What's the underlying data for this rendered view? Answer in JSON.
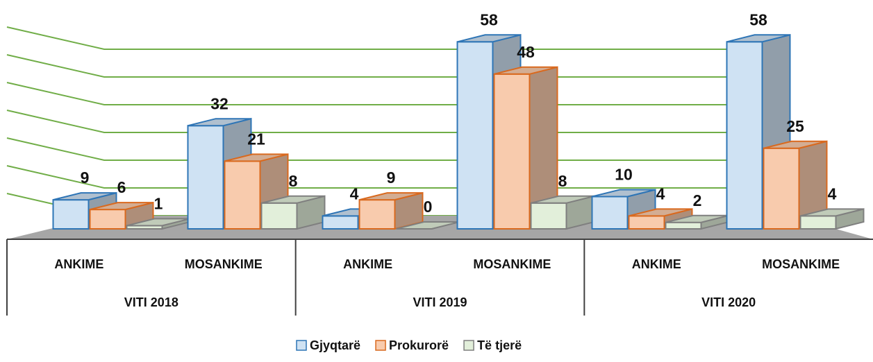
{
  "chart_data": {
    "type": "bar3d",
    "categories": [
      "ANKIME",
      "MOSANKIME",
      "ANKIME",
      "MOSANKIME",
      "ANKIME",
      "MOSANKIME"
    ],
    "groups": [
      "VITI 2018",
      "VITI 2019",
      "VITI 2020"
    ],
    "series": [
      {
        "name": "Gjyqtarë",
        "color": "#cfe2f3",
        "values": [
          9,
          32,
          4,
          58,
          10,
          58
        ]
      },
      {
        "name": "Prokurorë",
        "color": "#f8cbad",
        "values": [
          6,
          21,
          9,
          48,
          4,
          25
        ]
      },
      {
        "name": "Të tjerë",
        "color": "#e2efda",
        "values": [
          1,
          8,
          0,
          8,
          2,
          4
        ]
      }
    ],
    "ylim": [
      0,
      60
    ],
    "yticks": [
      0,
      10,
      20,
      30,
      40,
      50,
      60
    ],
    "grid": true
  }
}
